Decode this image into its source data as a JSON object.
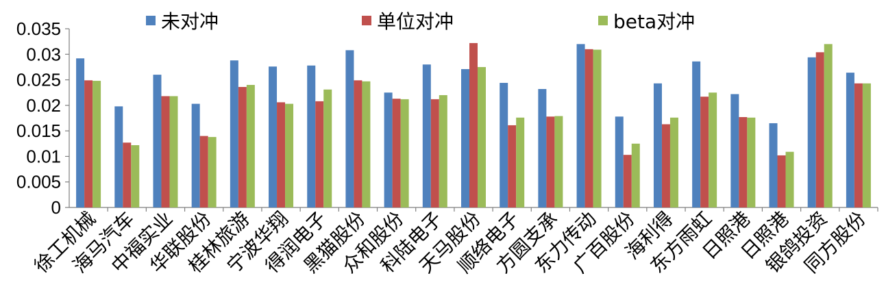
{
  "chart_data": {
    "type": "bar",
    "title": "",
    "xlabel": "",
    "ylabel": "",
    "ylim": [
      0,
      0.035
    ],
    "yticks": [
      "0",
      "0.005",
      "0.01",
      "0.015",
      "0.02",
      "0.025",
      "0.03",
      "0.035"
    ],
    "grid": false,
    "legend_position": "top",
    "categories": [
      "徐工机械",
      "海马汽车",
      "中福实业",
      "华联股份",
      "桂林旅游",
      "宁波华翔",
      "得润电子",
      "黑猫股份",
      "众和股份",
      "科陆电子",
      "天马股份",
      "顺络电子",
      "方圆支承",
      "东力传动",
      "广百股份",
      "海利得",
      "东方雨虹",
      "日照港",
      "日照港",
      "银鸽投资",
      "同方股份"
    ],
    "series": [
      {
        "name": "未对冲",
        "color": "#4F81BD",
        "values": [
          0.0292,
          0.0198,
          0.026,
          0.0203,
          0.0288,
          0.0276,
          0.0278,
          0.0308,
          0.0225,
          0.028,
          0.0271,
          0.0244,
          0.0232,
          0.032,
          0.0178,
          0.0243,
          0.0286,
          0.0222,
          0.0165,
          0.0294,
          0.0264
        ]
      },
      {
        "name": "单位对冲",
        "color": "#C0504D",
        "values": [
          0.0249,
          0.0127,
          0.0218,
          0.014,
          0.0236,
          0.0206,
          0.0208,
          0.0249,
          0.0213,
          0.0212,
          0.0322,
          0.0161,
          0.0178,
          0.031,
          0.0103,
          0.0163,
          0.0217,
          0.0177,
          0.0102,
          0.0304,
          0.0243
        ]
      },
      {
        "name": "beta对冲",
        "color": "#9BBB59",
        "values": [
          0.0248,
          0.0122,
          0.0218,
          0.0138,
          0.024,
          0.0203,
          0.0231,
          0.0247,
          0.0212,
          0.022,
          0.0275,
          0.0176,
          0.0179,
          0.0309,
          0.0125,
          0.0176,
          0.0225,
          0.0176,
          0.0109,
          0.032,
          0.0243
        ]
      }
    ]
  }
}
